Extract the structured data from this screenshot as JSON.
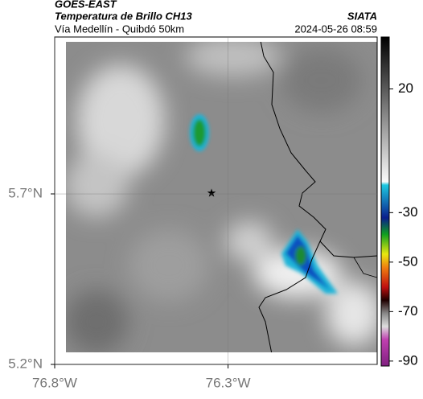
{
  "header": {
    "source": "GOES-EAST",
    "title": "Temperatura de Brillo CH13",
    "brand": "SIATA",
    "subtitle": "Vía Medellín - Quibdó 50km",
    "datetime": "2024-05-26 08:59"
  },
  "map": {
    "xlim": [
      -76.8,
      -75.87
    ],
    "ylim": [
      5.2,
      6.16
    ],
    "xticks": [
      {
        "value": -76.8,
        "label": "76.8°W"
      },
      {
        "value": -76.3,
        "label": "76.3°W"
      }
    ],
    "yticks": [
      {
        "value": 5.7,
        "label": "5.7°N"
      },
      {
        "value": 5.2,
        "label": "5.2°N"
      }
    ]
  },
  "colorbar": {
    "lim": [
      -92,
      41
    ],
    "ticks": [
      20,
      -30,
      -50,
      -70,
      -90
    ]
  }
}
